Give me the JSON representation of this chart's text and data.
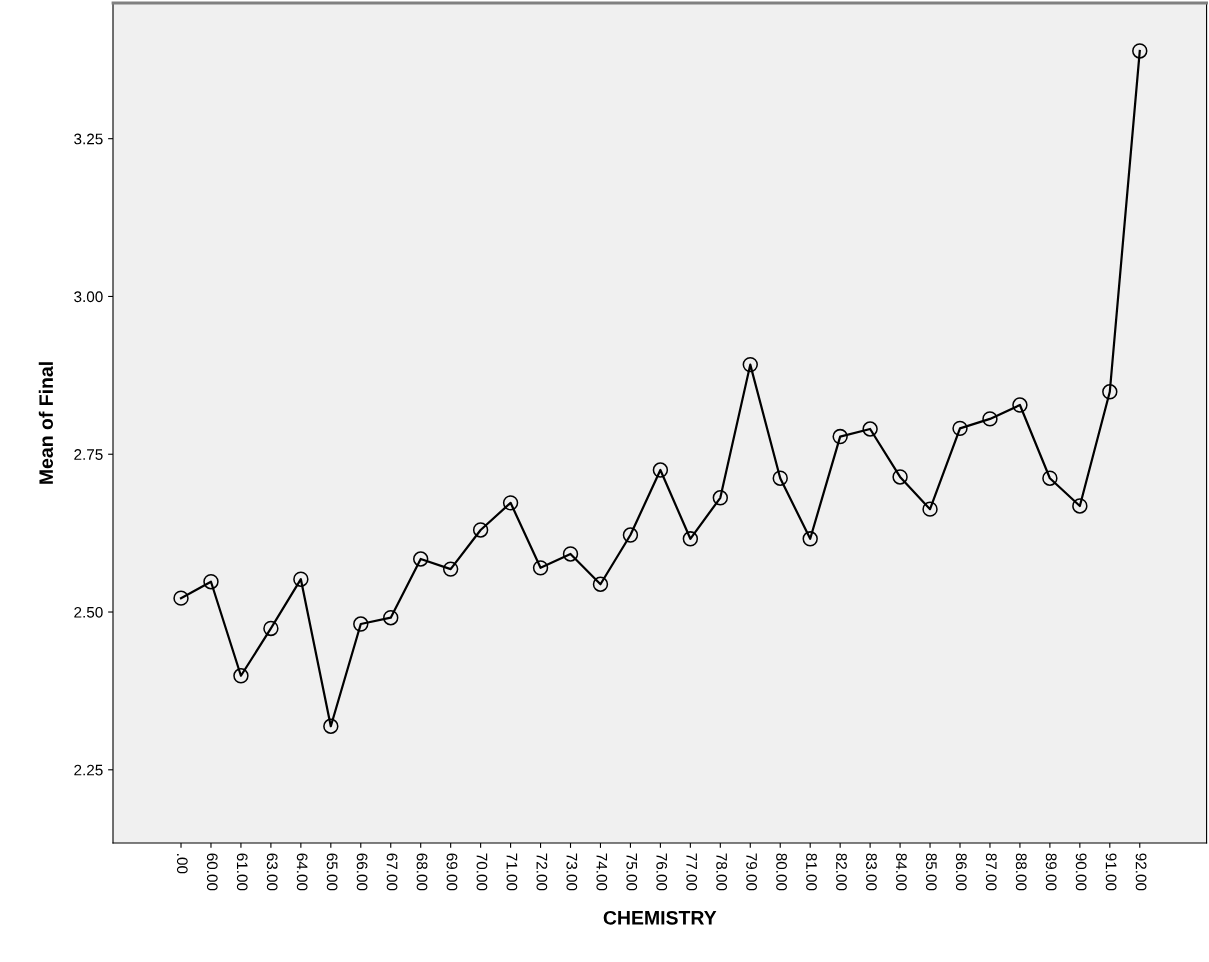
{
  "chart_data": {
    "type": "line",
    "xlabel": "CHEMISTRY",
    "ylabel": "Mean of Final",
    "categories": [
      ".00",
      "60.00",
      "61.00",
      "63.00",
      "64.00",
      "65.00",
      "66.00",
      "67.00",
      "68.00",
      "69.00",
      "70.00",
      "71.00",
      "72.00",
      "73.00",
      "74.00",
      "75.00",
      "76.00",
      "77.00",
      "78.00",
      "79.00",
      "80.00",
      "81.00",
      "82.00",
      "83.00",
      "84.00",
      "85.00",
      "86.00",
      "87.00",
      "88.00",
      "89.00",
      "90.00",
      "91.00",
      "92.00"
    ],
    "series": [
      {
        "color": "#000000",
        "values": [
          2.522,
          2.548,
          2.399,
          2.474,
          2.552,
          2.319,
          2.481,
          2.491,
          2.584,
          2.568,
          2.63,
          2.673,
          2.57,
          2.592,
          2.544,
          2.622,
          2.725,
          2.616,
          2.681,
          2.892,
          2.712,
          2.616,
          2.778,
          2.79,
          2.714,
          2.663,
          2.791,
          2.806,
          2.828,
          2.712,
          2.668,
          2.849,
          3.389
        ]
      }
    ],
    "ylim": [
      2.134,
      3.465
    ],
    "yticks": [
      {
        "value": 2.25,
        "label": "2.25"
      },
      {
        "value": 2.5,
        "label": "2.50"
      },
      {
        "value": 2.75,
        "label": "2.75"
      },
      {
        "value": 3.0,
        "label": "3.00"
      },
      {
        "value": 3.25,
        "label": "3.25"
      }
    ],
    "marker": "circle",
    "line_style": "solid",
    "grid": false,
    "legend": false
  }
}
